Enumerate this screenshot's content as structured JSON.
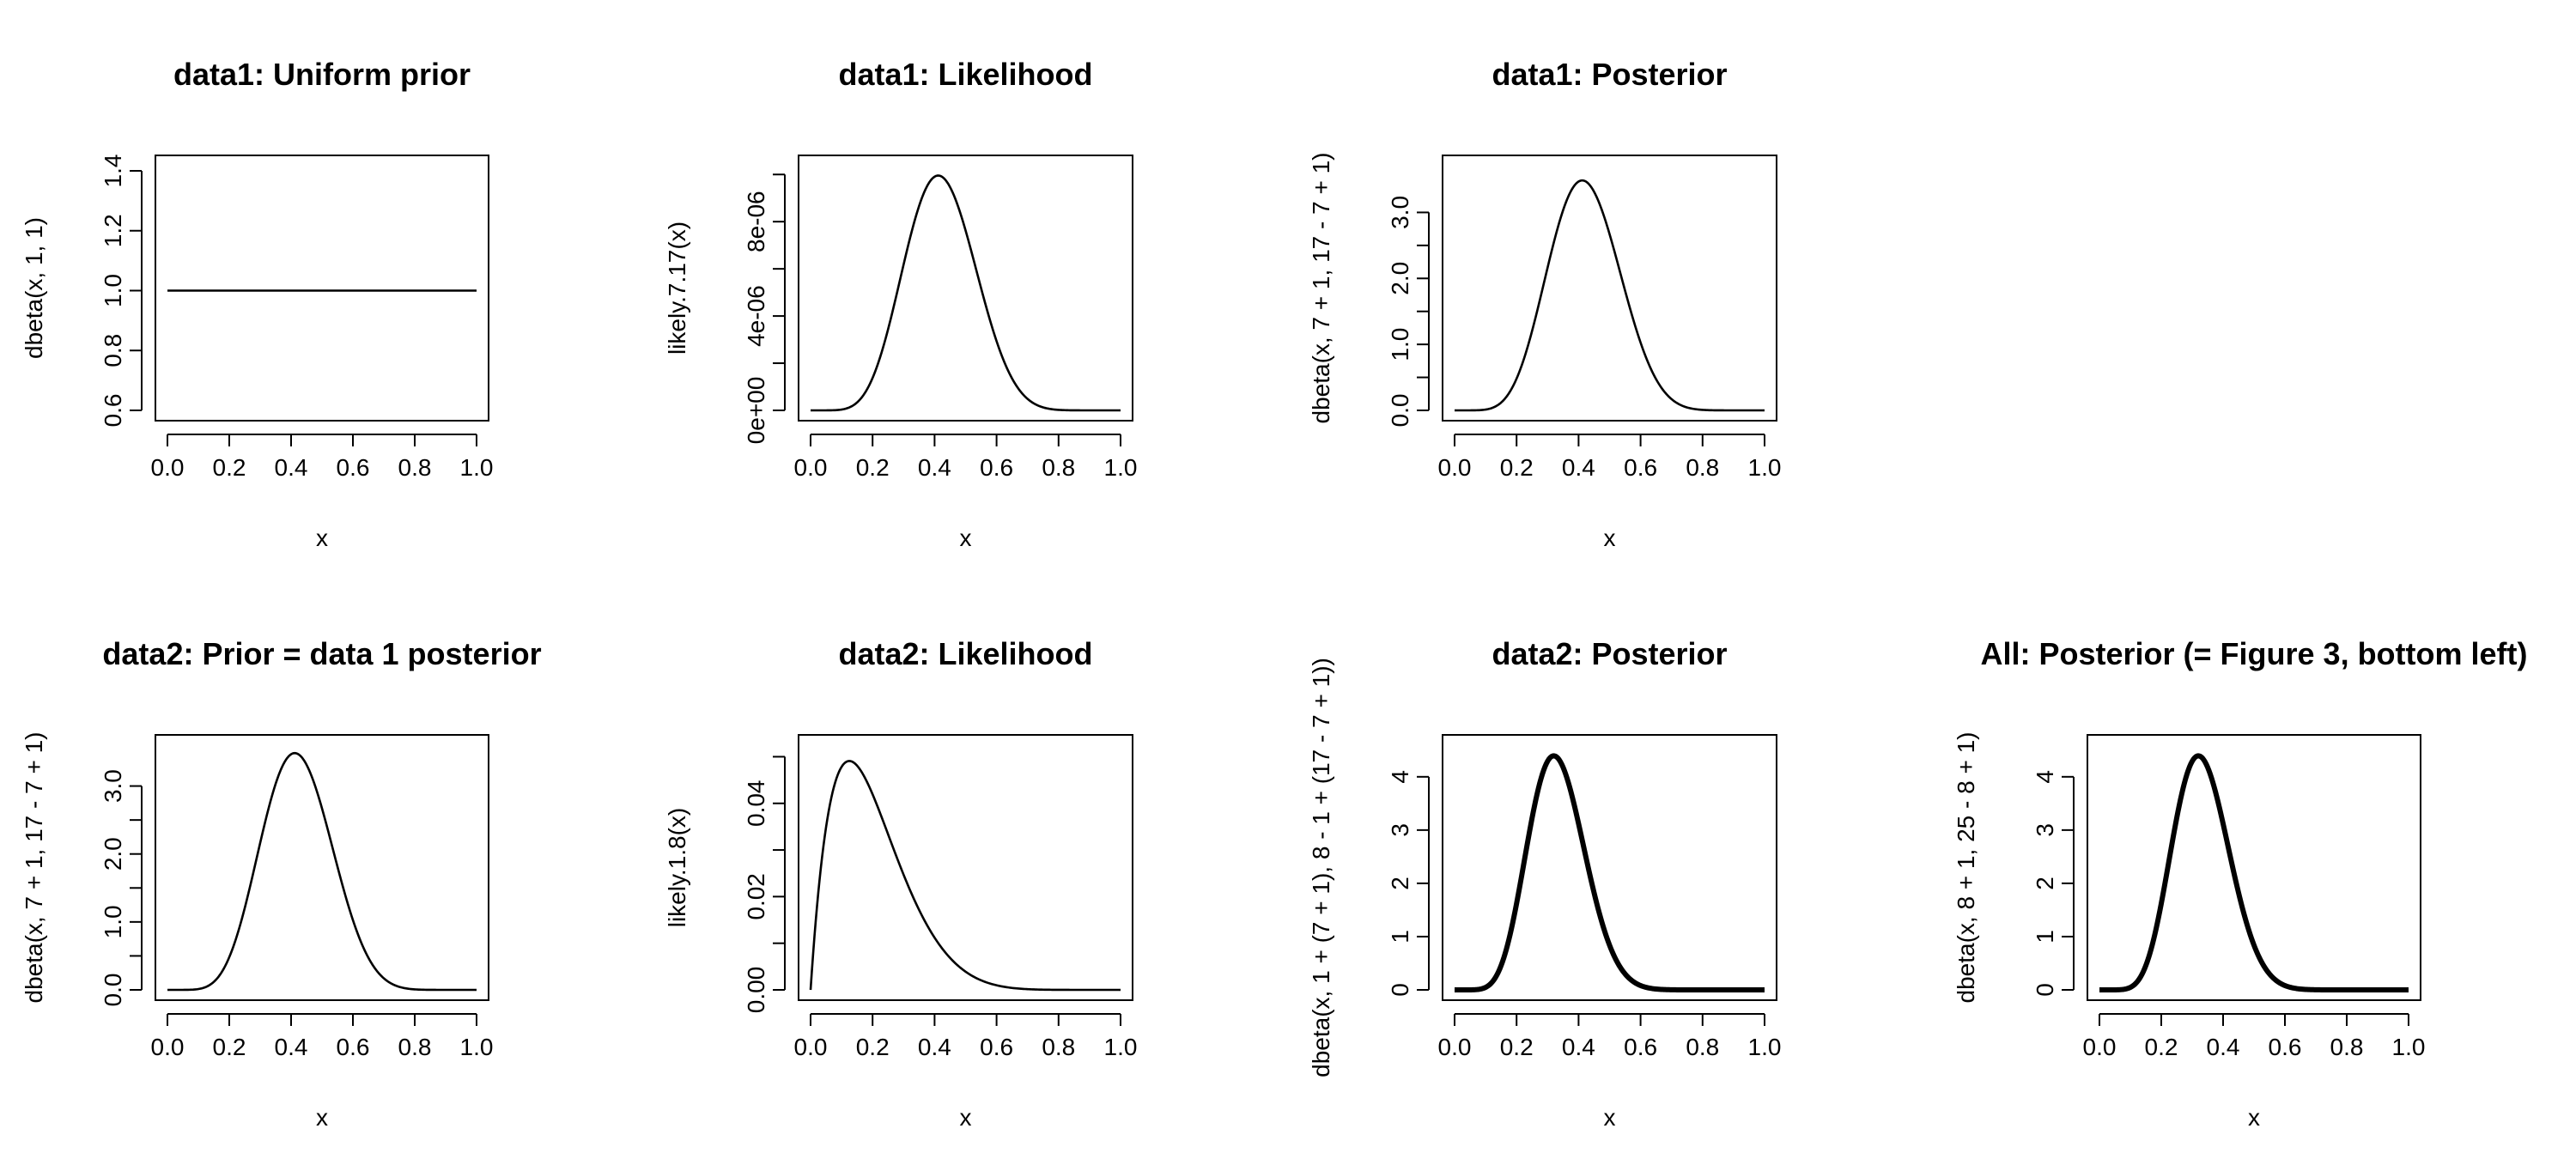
{
  "figure": {
    "panels": [
      {
        "id": "data1-prior",
        "title": "data1: Uniform prior"
      },
      {
        "id": "data1-likelihood",
        "title": "data1: Likelihood"
      },
      {
        "id": "data1-posterior",
        "title": "data1: Posterior"
      },
      {
        "id": "data2-prior",
        "title": "data2: Prior = data 1 posterior"
      },
      {
        "id": "data2-likelihood",
        "title": "data2: Likelihood"
      },
      {
        "id": "data2-posterior",
        "title": "data2: Posterior"
      },
      {
        "id": "all-posterior",
        "title": "All: Posterior (= Figure 3, bottom left)"
      }
    ]
  },
  "chart_data": [
    {
      "type": "line",
      "title": "data1: Uniform prior",
      "xlabel": "x",
      "ylabel": "dbeta(x, 1, 1)",
      "xlim": [
        0,
        1
      ],
      "ylim": [
        0.6,
        1.4
      ],
      "x_ticks": [
        0.0,
        0.2,
        0.4,
        0.6,
        0.8,
        1.0
      ],
      "x_tick_labels": [
        "0.0",
        "0.2",
        "0.4",
        "0.6",
        "0.8",
        "1.0"
      ],
      "y_ticks": [
        0.6,
        0.8,
        1.0,
        1.2,
        1.4
      ],
      "y_tick_labels": [
        "0.6",
        "0.8",
        "1.0",
        "1.2",
        "1.4"
      ],
      "curve": {
        "kind": "beta",
        "a": 1,
        "b": 1
      },
      "line_weight": "thin",
      "x": [
        0.0,
        0.2,
        0.4,
        0.6,
        0.8,
        1.0
      ],
      "y": [
        1.0,
        1.0,
        1.0,
        1.0,
        1.0,
        1.0
      ]
    },
    {
      "type": "line",
      "title": "data1: Likelihood",
      "xlabel": "x",
      "ylabel": "likely.7.17(x)",
      "xlim": [
        0,
        1
      ],
      "ylim": [
        0,
        1.03e-05
      ],
      "x_ticks": [
        0.0,
        0.2,
        0.4,
        0.6,
        0.8,
        1.0
      ],
      "x_tick_labels": [
        "0.0",
        "0.2",
        "0.4",
        "0.6",
        "0.8",
        "1.0"
      ],
      "y_ticks": [
        0,
        2e-06,
        4e-06,
        6e-06,
        8e-06,
        1e-05
      ],
      "y_tick_labels": [
        "0e+00",
        "",
        "4e-06",
        "",
        "8e-06",
        ""
      ],
      "curve": {
        "kind": "binom",
        "k": 7,
        "n": 17
      },
      "line_weight": "thin",
      "x": [
        0.0,
        0.1,
        0.2,
        0.3,
        0.41,
        0.5,
        0.6,
        0.7,
        0.8,
        0.9,
        1.0
      ],
      "y": [
        0,
        1.2e-08,
        9.5e-07,
        5.4e-06,
        1.01e-05,
        7.6e-06,
        2.4e-06,
        2.6e-07,
        6.7e-09,
        4.8e-12,
        0
      ]
    },
    {
      "type": "line",
      "title": "data1: Posterior",
      "xlabel": "x",
      "ylabel": "dbeta(x, 7 + 1, 17 - 7 + 1)",
      "xlim": [
        0,
        1
      ],
      "ylim": [
        0,
        3.5
      ],
      "x_ticks": [
        0.0,
        0.2,
        0.4,
        0.6,
        0.8,
        1.0
      ],
      "x_tick_labels": [
        "0.0",
        "0.2",
        "0.4",
        "0.6",
        "0.8",
        "1.0"
      ],
      "y_ticks": [
        0,
        0.5,
        1.0,
        1.5,
        2.0,
        2.5,
        3.0
      ],
      "y_tick_labels": [
        "0.0",
        "",
        "1.0",
        "",
        "2.0",
        "",
        "3.0"
      ],
      "curve": {
        "kind": "beta",
        "a": 8,
        "b": 11
      },
      "line_weight": "thin",
      "x": [
        0.0,
        0.1,
        0.2,
        0.3,
        0.41,
        0.5,
        0.6,
        0.7,
        0.8,
        0.9,
        1.0
      ],
      "y": [
        0,
        0.004,
        0.31,
        1.79,
        3.4,
        2.5,
        0.78,
        0.087,
        0.0021,
        1.6e-06,
        0
      ]
    },
    {
      "type": "line",
      "title": "data2: Prior = data 1 posterior",
      "xlabel": "x",
      "ylabel": "dbeta(x, 7 + 1, 17 - 7 + 1)",
      "xlim": [
        0,
        1
      ],
      "ylim": [
        0,
        3.5
      ],
      "x_ticks": [
        0.0,
        0.2,
        0.4,
        0.6,
        0.8,
        1.0
      ],
      "x_tick_labels": [
        "0.0",
        "0.2",
        "0.4",
        "0.6",
        "0.8",
        "1.0"
      ],
      "y_ticks": [
        0,
        0.5,
        1.0,
        1.5,
        2.0,
        2.5,
        3.0
      ],
      "y_tick_labels": [
        "0.0",
        "",
        "1.0",
        "",
        "2.0",
        "",
        "3.0"
      ],
      "curve": {
        "kind": "beta",
        "a": 8,
        "b": 11
      },
      "line_weight": "thin",
      "x": [
        0.0,
        0.1,
        0.2,
        0.3,
        0.41,
        0.5,
        0.6,
        0.7,
        0.8,
        0.9,
        1.0
      ],
      "y": [
        0,
        0.004,
        0.31,
        1.79,
        3.4,
        2.5,
        0.78,
        0.087,
        0.0021,
        1.6e-06,
        0
      ]
    },
    {
      "type": "line",
      "title": "data2: Likelihood",
      "xlabel": "x",
      "ylabel": "likely.1.8(x)",
      "xlim": [
        0,
        1
      ],
      "ylim": [
        0,
        0.051
      ],
      "x_ticks": [
        0.0,
        0.2,
        0.4,
        0.6,
        0.8,
        1.0
      ],
      "x_tick_labels": [
        "0.0",
        "0.2",
        "0.4",
        "0.6",
        "0.8",
        "1.0"
      ],
      "y_ticks": [
        0,
        0.01,
        0.02,
        0.03,
        0.04,
        0.05
      ],
      "y_tick_labels": [
        "0.00",
        "",
        "0.02",
        "",
        "0.04",
        ""
      ],
      "curve": {
        "kind": "binom",
        "k": 1,
        "n": 8
      },
      "line_weight": "thin",
      "x": [
        0.0,
        0.05,
        0.125,
        0.2,
        0.3,
        0.4,
        0.5,
        0.6,
        0.8,
        1.0
      ],
      "y": [
        0,
        0.0349,
        0.0491,
        0.042,
        0.0247,
        0.0112,
        0.0039,
        0.00098,
        1.02e-05,
        0
      ]
    },
    {
      "type": "line",
      "title": "data2: Posterior",
      "xlabel": "x",
      "ylabel": "dbeta(x, 1 + (7 + 1), 8 - 1 + (17 - 7 + 1))",
      "xlim": [
        0,
        1
      ],
      "ylim": [
        0,
        4.4
      ],
      "x_ticks": [
        0.0,
        0.2,
        0.4,
        0.6,
        0.8,
        1.0
      ],
      "x_tick_labels": [
        "0.0",
        "0.2",
        "0.4",
        "0.6",
        "0.8",
        "1.0"
      ],
      "y_ticks": [
        0,
        1,
        2,
        3,
        4
      ],
      "y_tick_labels": [
        "0",
        "1",
        "2",
        "3",
        "4"
      ],
      "curve": {
        "kind": "beta",
        "a": 9,
        "b": 18
      },
      "line_weight": "thick",
      "x": [
        0.0,
        0.1,
        0.2,
        0.3,
        0.32,
        0.4,
        0.5,
        0.6,
        0.7,
        0.8,
        1.0
      ],
      "y": [
        0,
        0.06,
        1.45,
        4.0,
        4.3,
        2.7,
        0.64,
        0.058,
        0.0015,
        5.8e-06,
        0
      ]
    },
    {
      "type": "line",
      "title": "All: Posterior (= Figure 3, bottom left)",
      "xlabel": "x",
      "ylabel": "dbeta(x, 8 + 1, 25 - 8 + 1)",
      "xlim": [
        0,
        1
      ],
      "ylim": [
        0,
        4.4
      ],
      "x_ticks": [
        0.0,
        0.2,
        0.4,
        0.6,
        0.8,
        1.0
      ],
      "x_tick_labels": [
        "0.0",
        "0.2",
        "0.4",
        "0.6",
        "0.8",
        "1.0"
      ],
      "y_ticks": [
        0,
        1,
        2,
        3,
        4
      ],
      "y_tick_labels": [
        "0",
        "1",
        "2",
        "3",
        "4"
      ],
      "curve": {
        "kind": "beta",
        "a": 9,
        "b": 18
      },
      "line_weight": "thick",
      "x": [
        0.0,
        0.1,
        0.2,
        0.3,
        0.32,
        0.4,
        0.5,
        0.6,
        0.7,
        0.8,
        1.0
      ],
      "y": [
        0,
        0.06,
        1.45,
        4.0,
        4.3,
        2.7,
        0.64,
        0.058,
        0.0015,
        5.8e-06,
        0
      ]
    }
  ]
}
